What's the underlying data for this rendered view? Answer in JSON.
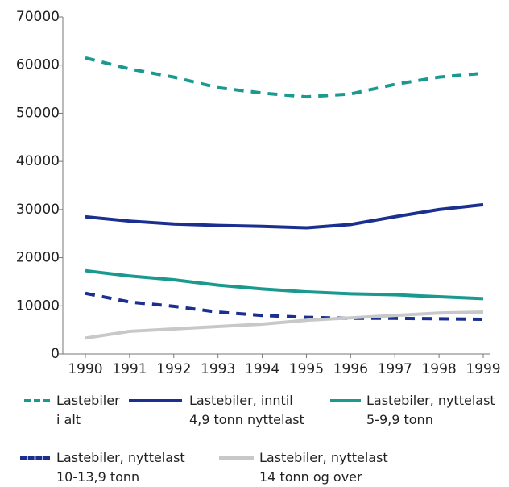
{
  "chart_data": {
    "type": "line",
    "categories": [
      "1990",
      "1991",
      "1992",
      "1993",
      "1994",
      "1995",
      "1996",
      "1997",
      "1998",
      "1999"
    ],
    "series": [
      {
        "name": "Lastebiler\ni alt",
        "color": "#1a9a8f",
        "style": "dashed",
        "values": [
          61500,
          59200,
          57500,
          55300,
          54200,
          53400,
          54000,
          56000,
          57500,
          58300
        ]
      },
      {
        "name": "Lastebiler, inntil\n4,9 tonn nyttelast",
        "color": "#1a2f8f",
        "style": "solid",
        "values": [
          28500,
          27600,
          27000,
          26700,
          26500,
          26200,
          26900,
          28500,
          30000,
          31000
        ]
      },
      {
        "name": "Lastebiler, nyttelast\n5-9,9 tonn",
        "color": "#1a9a8f",
        "style": "solid",
        "values": [
          17300,
          16200,
          15400,
          14300,
          13500,
          12900,
          12500,
          12300,
          11900,
          11500
        ]
      },
      {
        "name": "Lastebiler, nyttelast\n10-13,9 tonn",
        "color": "#1a2f8f",
        "style": "dashed",
        "values": [
          12600,
          10800,
          9900,
          8700,
          8000,
          7600,
          7400,
          7400,
          7300,
          7200
        ]
      },
      {
        "name": "Lastebiler, nyttelast\n14 tonn og over",
        "color": "#c8c8c8",
        "style": "solid",
        "values": [
          3300,
          4700,
          5200,
          5700,
          6200,
          7000,
          7500,
          8000,
          8500,
          8700
        ]
      }
    ],
    "ylim": [
      0,
      70000
    ],
    "yticks": [
      0,
      10000,
      20000,
      30000,
      40000,
      50000,
      60000,
      70000
    ]
  }
}
